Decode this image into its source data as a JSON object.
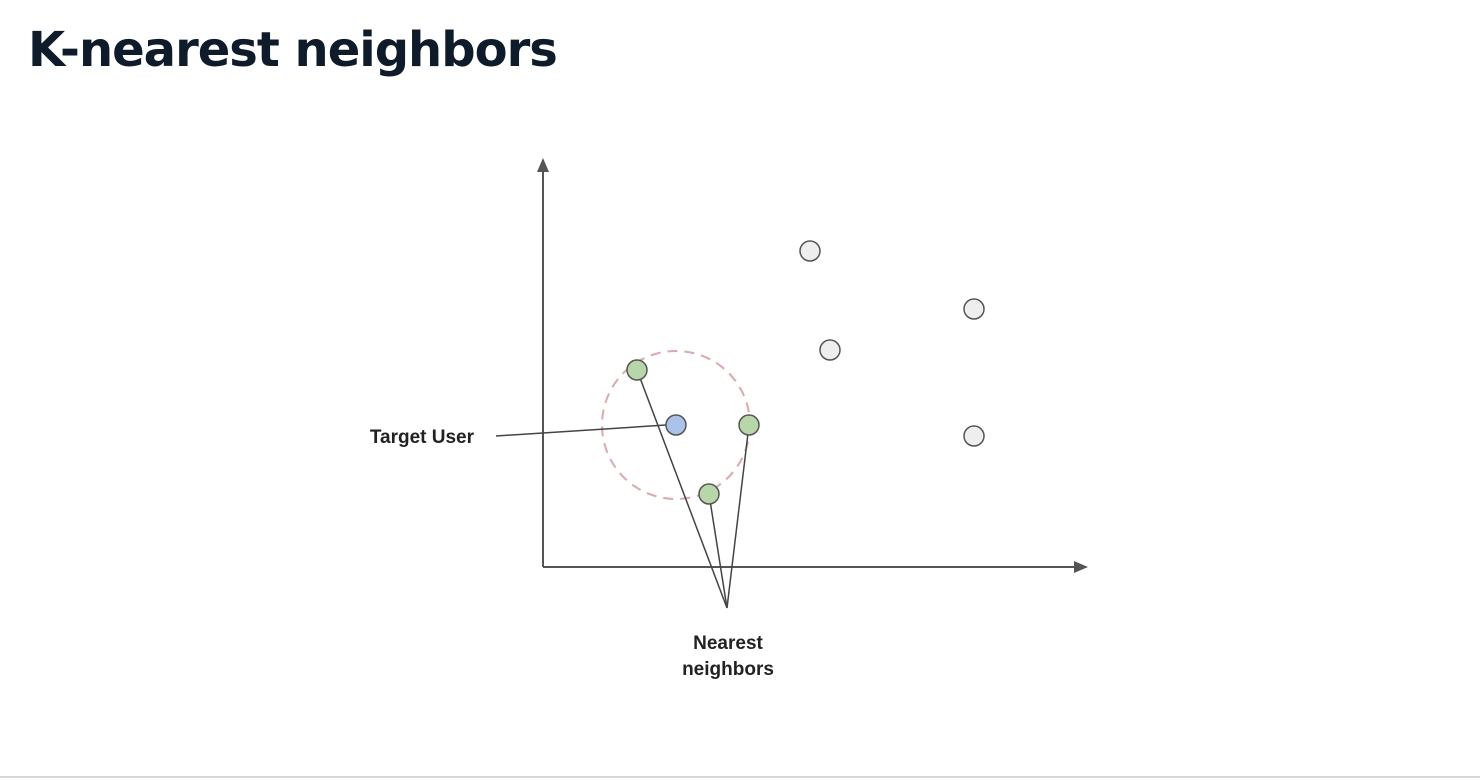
{
  "title": "K-nearest neighbors",
  "labels": {
    "target_user": "Target User",
    "nearest_line1": "Nearest",
    "nearest_line2": "neighbors"
  },
  "colors": {
    "title": "#0d1b2a",
    "target_user_fill": "#a9c4e8",
    "neighbor_fill": "#b7d7a8",
    "other_fill": "#eeeeee",
    "radius_circle": "#e0a8a8",
    "axis": "#555555"
  }
}
